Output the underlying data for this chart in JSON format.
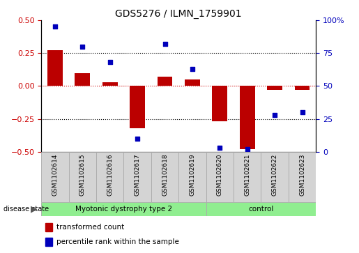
{
  "title": "GDS5276 / ILMN_1759901",
  "samples": [
    "GSM1102614",
    "GSM1102615",
    "GSM1102616",
    "GSM1102617",
    "GSM1102618",
    "GSM1102619",
    "GSM1102620",
    "GSM1102621",
    "GSM1102622",
    "GSM1102623"
  ],
  "transformed_count": [
    0.27,
    0.1,
    0.03,
    -0.32,
    0.07,
    0.05,
    -0.27,
    -0.48,
    -0.03,
    -0.03
  ],
  "percentile_rank": [
    95,
    80,
    68,
    10,
    82,
    63,
    3,
    2,
    28,
    30
  ],
  "disease_groups": [
    {
      "label": "Myotonic dystrophy type 2",
      "start": 0,
      "end": 6,
      "color": "#90ee90"
    },
    {
      "label": "control",
      "start": 6,
      "end": 10,
      "color": "#90ee90"
    }
  ],
  "bar_color": "#bb0000",
  "dot_color": "#0000bb",
  "ylim_left": [
    -0.5,
    0.5
  ],
  "ylim_right": [
    0,
    100
  ],
  "yticks_left": [
    -0.5,
    -0.25,
    0,
    0.25,
    0.5
  ],
  "yticks_right": [
    0,
    25,
    50,
    75,
    100
  ],
  "hlines": [
    0.25,
    0.0,
    -0.25
  ],
  "hline_colors": [
    "black",
    "#cc0000",
    "black"
  ],
  "hline_styles": [
    "dotted",
    "dotted",
    "dotted"
  ],
  "background_color": "#ffffff",
  "legend_items": [
    {
      "label": "transformed count",
      "color": "#bb0000"
    },
    {
      "label": "percentile rank within the sample",
      "color": "#0000bb"
    }
  ],
  "left_axis_color": "#cc0000",
  "right_axis_color": "#0000bb",
  "bar_width": 0.55,
  "dot_size": 20
}
